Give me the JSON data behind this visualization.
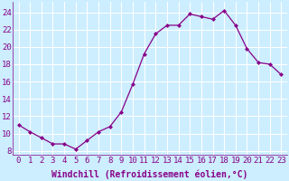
{
  "x": [
    0,
    1,
    2,
    3,
    4,
    5,
    6,
    7,
    8,
    9,
    10,
    11,
    12,
    13,
    14,
    15,
    16,
    17,
    18,
    19,
    20,
    21,
    22,
    23
  ],
  "y": [
    11,
    10.2,
    9.5,
    8.8,
    8.8,
    8.2,
    9.2,
    10.2,
    10.8,
    12.5,
    15.7,
    19.2,
    21.5,
    22.5,
    22.5,
    23.8,
    23.5,
    23.2,
    24.2,
    22.5,
    19.8,
    18.2,
    18.0,
    16.8
  ],
  "line_color": "#880088",
  "marker": "D",
  "marker_size": 2.0,
  "bg_color": "#cceeff",
  "grid_color": "#ffffff",
  "xlabel": "Windchill (Refroidissement éolien,°C)",
  "xlabel_fontsize": 7,
  "ylabel_ticks": [
    8,
    10,
    12,
    14,
    16,
    18,
    20,
    22,
    24
  ],
  "xtick_labels": [
    "0",
    "1",
    "2",
    "3",
    "4",
    "5",
    "6",
    "7",
    "8",
    "9",
    "10",
    "11",
    "12",
    "13",
    "14",
    "15",
    "16",
    "17",
    "18",
    "19",
    "20",
    "21",
    "22",
    "23"
  ],
  "ylim": [
    7.5,
    25.2
  ],
  "xlim": [
    -0.5,
    23.5
  ],
  "tick_fontsize": 6.5
}
